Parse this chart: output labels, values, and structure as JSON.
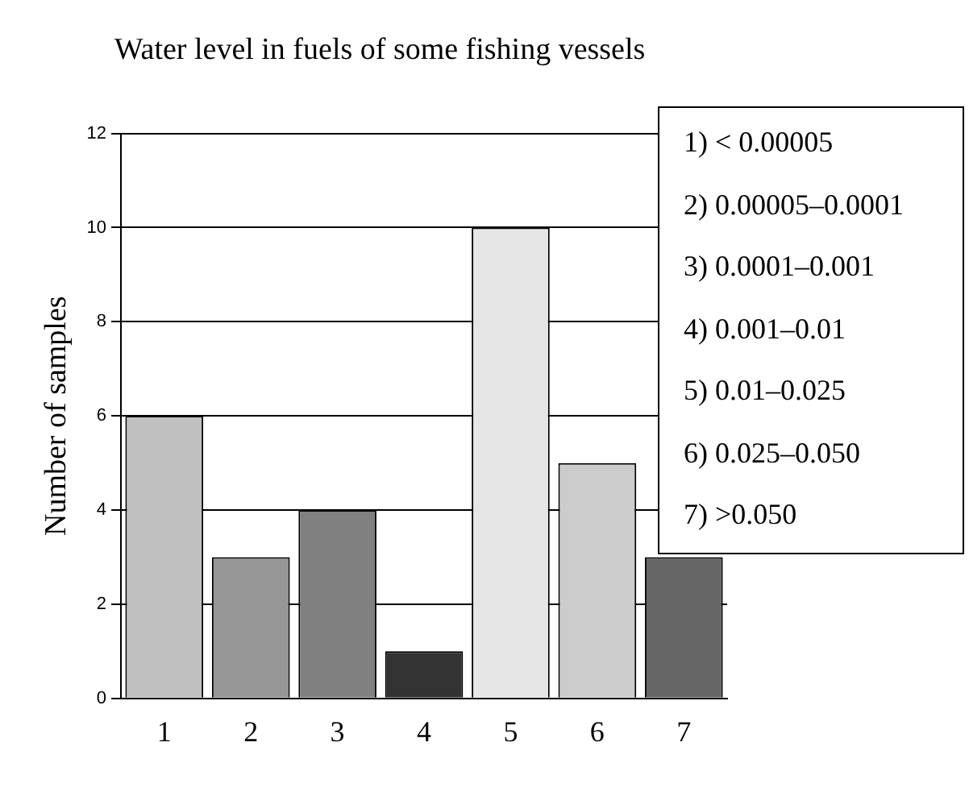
{
  "chart_data": {
    "type": "bar",
    "title": "Water level in fuels of some fishing vessels",
    "ylabel": "Number of samples",
    "categories": [
      "1",
      "2",
      "3",
      "4",
      "5",
      "6",
      "7"
    ],
    "values": [
      6,
      3,
      4,
      1,
      10,
      5,
      3
    ],
    "colors": [
      "#c0c0c0",
      "#969696",
      "#808080",
      "#333333",
      "#e6e6e6",
      "#cccccc",
      "#666666"
    ],
    "ylim": [
      0,
      12
    ],
    "yticks": [
      0,
      2,
      4,
      6,
      8,
      10,
      12
    ],
    "grid": "y",
    "legend": false,
    "annotations": [
      "1)  < 0.00005",
      "2)  0.00005–0.0001",
      "3)  0.0001–0.001",
      "4)  0.001–0.01",
      "5)  0.01–0.025",
      "6)  0.025–0.050",
      "7)  >0.050"
    ]
  }
}
